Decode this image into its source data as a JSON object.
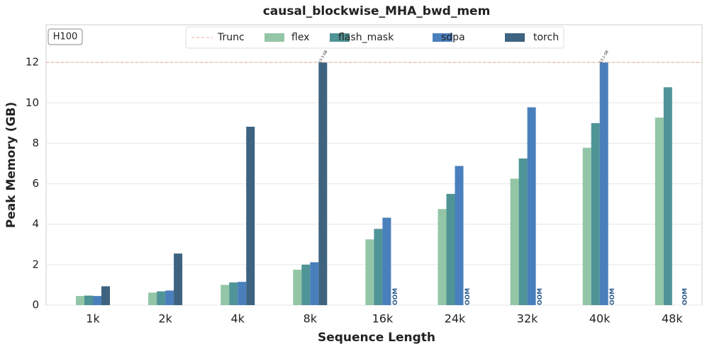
{
  "chart_data": {
    "type": "bar",
    "title": "causal_blockwise_MHA_bwd_mem",
    "x_label": "Sequence Length",
    "y_label": "Peak Memory (GB)",
    "annotation": "H100",
    "categories": [
      "1k",
      "2k",
      "4k",
      "8k",
      "16k",
      "24k",
      "32k",
      "40k",
      "48k"
    ],
    "truncation": {
      "name": "Trunc",
      "value": 12,
      "color": "#e8a898"
    },
    "series": [
      {
        "name": "flex",
        "color": "#93c6a6",
        "values": [
          0.45,
          0.62,
          1.0,
          1.75,
          3.25,
          4.75,
          6.25,
          7.78,
          9.27
        ]
      },
      {
        "name": "flash_mask",
        "color": "#4f9496",
        "values": [
          0.47,
          0.68,
          1.12,
          2.0,
          3.77,
          5.5,
          7.25,
          9.0,
          10.77
        ]
      },
      {
        "name": "sdpa",
        "color": "#4a7fbd",
        "values": [
          0.45,
          0.72,
          1.15,
          2.12,
          4.32,
          6.88,
          9.78,
          13.1,
          null
        ],
        "value_labels": [
          null,
          null,
          null,
          null,
          null,
          null,
          null,
          "13.1 GB",
          null
        ]
      },
      {
        "name": "torch",
        "color": "#3d6380",
        "values": [
          0.93,
          2.55,
          8.82,
          13.3,
          null,
          null,
          null,
          null,
          null
        ],
        "value_labels": [
          null,
          null,
          null,
          "13.3 GB",
          "OOM",
          "OOM",
          "OOM",
          "OOM",
          "OOM"
        ]
      }
    ],
    "ylim": [
      0,
      13.86
    ],
    "yticks": [
      0,
      2,
      4,
      6,
      8,
      10,
      12
    ],
    "grid": true
  }
}
